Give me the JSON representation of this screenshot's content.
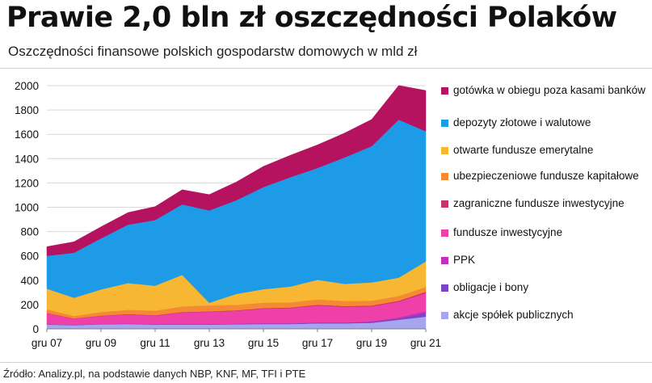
{
  "title": "Prawie 2,0 bln zł oszczędności Polaków",
  "subtitle": "Oszczędności finansowe polskich gospodarstw domowych w mld zł",
  "source": "Źródło: Analizy.pl, na podstawie danych NBP, KNF, MF, TFI i PTE",
  "chart_data": {
    "type": "area",
    "stacked": true,
    "x": [
      "gru 07",
      "gru 08",
      "gru 09",
      "gru 10",
      "gru 11",
      "gru 12",
      "gru 13",
      "gru 14",
      "gru 15",
      "gru 16",
      "gru 17",
      "gru 18",
      "gru 19",
      "gru 20",
      "gru 21"
    ],
    "x_tick_labels": [
      "gru 07",
      "gru 09",
      "gru 11",
      "gru 13",
      "gru 15",
      "gru 17",
      "gru 19",
      "gru 21"
    ],
    "ylim": [
      0,
      2000
    ],
    "y_ticks": [
      0,
      200,
      400,
      600,
      800,
      1000,
      1200,
      1400,
      1600,
      1800,
      2000
    ],
    "grid": true,
    "legend_position": "right",
    "series": [
      {
        "name": "akcje spółek publicznych",
        "color": "#a6a6f0",
        "values": [
          35,
          30,
          38,
          40,
          35,
          35,
          35,
          38,
          40,
          40,
          45,
          45,
          50,
          75,
          100
        ]
      },
      {
        "name": "obligacje i bony",
        "color": "#7a45c4",
        "values": [
          3,
          3,
          3,
          4,
          4,
          5,
          5,
          5,
          6,
          6,
          7,
          7,
          8,
          10,
          30
        ]
      },
      {
        "name": "PPK",
        "color": "#c02fc0",
        "values": [
          0,
          0,
          0,
          0,
          0,
          0,
          0,
          0,
          0,
          0,
          0,
          0,
          3,
          8,
          15
        ]
      },
      {
        "name": "fundusze inwestycyjne",
        "color": "#ef3fa8",
        "values": [
          90,
          50,
          65,
          75,
          70,
          95,
          100,
          105,
          120,
          125,
          140,
          130,
          125,
          130,
          150
        ]
      },
      {
        "name": "zagraniczne fundusze inwestycyjne",
        "color": "#c8336e",
        "values": [
          3,
          3,
          3,
          3,
          3,
          4,
          4,
          5,
          5,
          5,
          6,
          6,
          6,
          8,
          10
        ]
      },
      {
        "name": "ubezpieczeniowe fundusze kapitałowe",
        "color": "#f58a33",
        "values": [
          30,
          20,
          30,
          35,
          38,
          45,
          50,
          45,
          45,
          42,
          45,
          42,
          40,
          40,
          40
        ]
      },
      {
        "name": "otwarte fundusze emerytalne",
        "color": "#f7b733",
        "values": [
          170,
          150,
          185,
          220,
          205,
          260,
          20,
          90,
          110,
          130,
          160,
          140,
          150,
          150,
          210
        ]
      },
      {
        "name": "depozyty złotowe i walutowe",
        "color": "#1d9be6",
        "values": [
          270,
          370,
          420,
          480,
          540,
          580,
          760,
          770,
          840,
          900,
          920,
          1040,
          1120,
          1300,
          1070
        ]
      },
      {
        "name": "gotówka w obiegu poza kasami banków",
        "color": "#b5125f",
        "values": [
          75,
          90,
          95,
          100,
          110,
          120,
          130,
          150,
          170,
          180,
          190,
          200,
          220,
          280,
          335
        ]
      }
    ]
  }
}
